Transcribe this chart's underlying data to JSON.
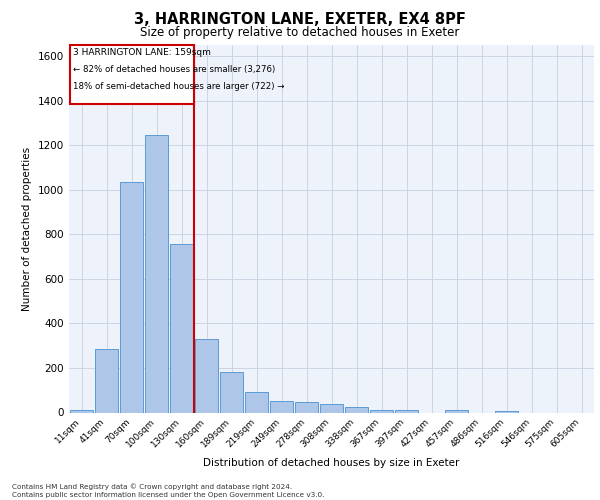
{
  "title": "3, HARRINGTON LANE, EXETER, EX4 8PF",
  "subtitle": "Size of property relative to detached houses in Exeter",
  "xlabel": "Distribution of detached houses by size in Exeter",
  "ylabel": "Number of detached properties",
  "bar_labels": [
    "11sqm",
    "41sqm",
    "70sqm",
    "100sqm",
    "130sqm",
    "160sqm",
    "189sqm",
    "219sqm",
    "249sqm",
    "278sqm",
    "308sqm",
    "338sqm",
    "367sqm",
    "397sqm",
    "427sqm",
    "457sqm",
    "486sqm",
    "516sqm",
    "546sqm",
    "575sqm",
    "605sqm"
  ],
  "bar_values": [
    10,
    285,
    1035,
    1245,
    755,
    330,
    180,
    90,
    50,
    48,
    38,
    25,
    10,
    10,
    0,
    12,
    0,
    8,
    0,
    0,
    0
  ],
  "bar_color": "#aec6e8",
  "bar_edge_color": "#5b9bd5",
  "ylim": [
    0,
    1650
  ],
  "yticks": [
    0,
    200,
    400,
    600,
    800,
    1000,
    1200,
    1400,
    1600
  ],
  "property_line_x": 4.5,
  "property_line_color": "#cc0000",
  "annotation_title": "3 HARRINGTON LANE: 159sqm",
  "annotation_line1": "← 82% of detached houses are smaller (3,276)",
  "annotation_line2": "18% of semi-detached houses are larger (722) →",
  "annotation_box_color": "#cc0000",
  "background_color": "#eef2fb",
  "grid_color": "#c8cfe0",
  "footer_line1": "Contains HM Land Registry data © Crown copyright and database right 2024.",
  "footer_line2": "Contains public sector information licensed under the Open Government Licence v3.0."
}
